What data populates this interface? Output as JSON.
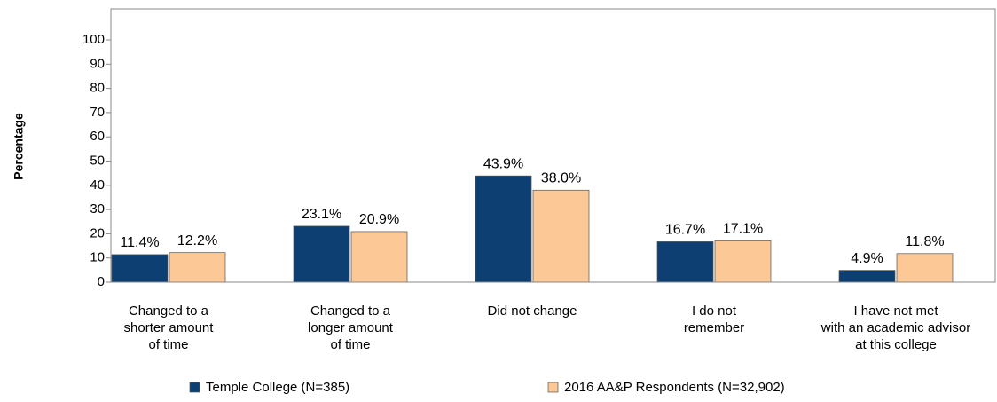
{
  "chart_data": {
    "type": "bar",
    "y_label": "Percentage",
    "categories": [
      [
        "Changed to a",
        "shorter amount",
        "of time"
      ],
      [
        "Changed to a",
        "longer amount",
        "of time"
      ],
      [
        "Did not change"
      ],
      [
        "I do not",
        "remember"
      ],
      [
        "I have not met",
        "with an academic advisor",
        "at this college"
      ]
    ],
    "series": [
      {
        "name": "Temple College (N=385)",
        "color": "#0d3f73",
        "values": [
          11.4,
          23.1,
          43.9,
          16.7,
          4.9
        ],
        "value_labels": [
          "11.4%",
          "23.1%",
          "43.9%",
          "16.7%",
          "4.9%"
        ]
      },
      {
        "name": "2016 AA&P Respondents (N=32,902)",
        "color": "#fcc896",
        "values": [
          12.2,
          20.9,
          38.0,
          17.1,
          11.8
        ],
        "value_labels": [
          "12.2%",
          "20.9%",
          "38.0%",
          "17.1%",
          "11.8%"
        ]
      }
    ],
    "ylim": [
      0,
      100
    ],
    "yticks": [
      0,
      10,
      20,
      30,
      40,
      50,
      60,
      70,
      80,
      90,
      100
    ],
    "legend": "bottom"
  }
}
